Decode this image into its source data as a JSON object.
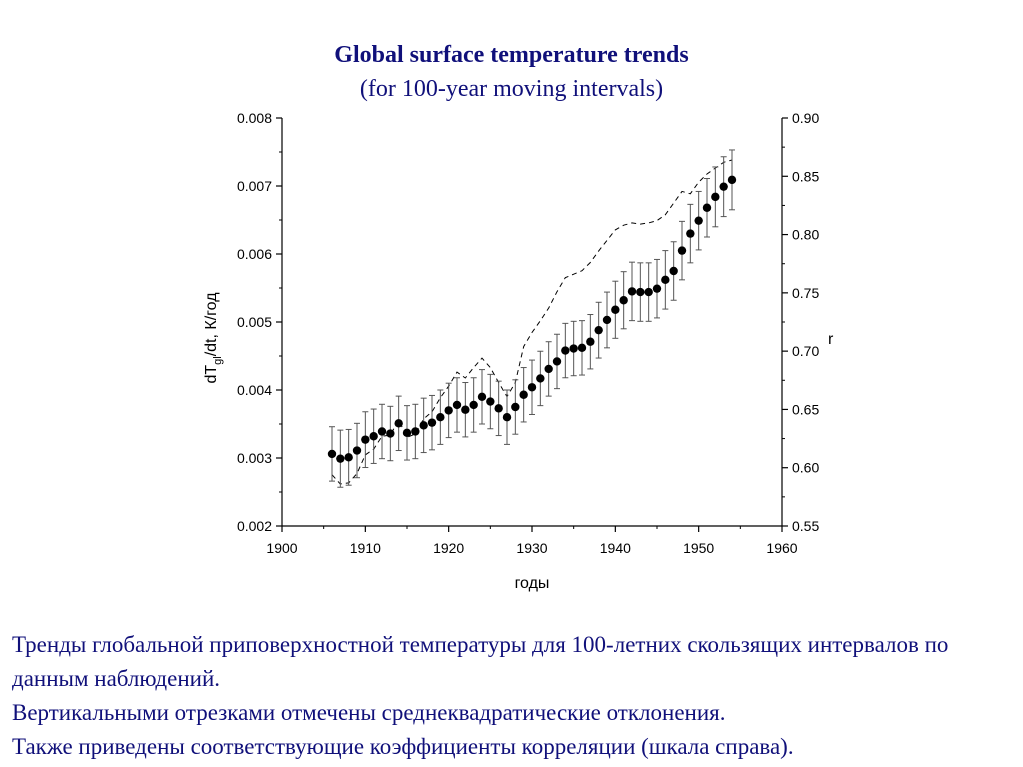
{
  "title": "Global surface temperature trends",
  "subtitle": "(for 100-year moving intervals)",
  "caption": {
    "line1": "Тренды глобальной приповерхностной температуры  для 100-летних скользящих интервалов по данным наблюдений.",
    "line2": "Вертикальными отрезками отмечены среднеквадратические отклонения.",
    "line3": "Также приведены соответствующие коэффициенты корреляции (шкала справа)."
  },
  "chart_data": {
    "type": "scatter",
    "xlabel": "годы",
    "ylabel_left": "dT_gl/dt, К/год",
    "ylabel_right": "r",
    "xlim": [
      1900,
      1960
    ],
    "xticks": [
      1900,
      1910,
      1920,
      1930,
      1940,
      1950,
      1960
    ],
    "ylim_left": [
      0.002,
      0.008
    ],
    "yticks_left": [
      "0.002",
      "0.003",
      "0.004",
      "0.005",
      "0.006",
      "0.007",
      "0.008"
    ],
    "ylim_right": [
      0.55,
      0.9
    ],
    "yticks_right": [
      "0.55",
      "0.60",
      "0.65",
      "0.70",
      "0.75",
      "0.80",
      "0.85",
      "0.90"
    ],
    "grid": false,
    "series": [
      {
        "style": "points-with-error-bars",
        "axis": "left",
        "x": [
          1906,
          1907,
          1908,
          1909,
          1910,
          1911,
          1912,
          1913,
          1914,
          1915,
          1916,
          1917,
          1918,
          1919,
          1920,
          1921,
          1922,
          1923,
          1924,
          1925,
          1926,
          1927,
          1928,
          1929,
          1930,
          1931,
          1932,
          1933,
          1934,
          1935,
          1936,
          1937,
          1938,
          1939,
          1940,
          1941,
          1942,
          1943,
          1944,
          1945,
          1946,
          1947,
          1948,
          1949,
          1950,
          1951,
          1952,
          1953,
          1954
        ],
        "y": [
          0.00306,
          0.00299,
          0.00301,
          0.00311,
          0.00327,
          0.00332,
          0.00339,
          0.00336,
          0.00351,
          0.00337,
          0.00339,
          0.00348,
          0.00352,
          0.0036,
          0.0037,
          0.00378,
          0.00371,
          0.00378,
          0.0039,
          0.00383,
          0.00373,
          0.0036,
          0.00375,
          0.00393,
          0.00404,
          0.00417,
          0.00431,
          0.00442,
          0.00458,
          0.00461,
          0.00462,
          0.00471,
          0.00488,
          0.00503,
          0.00518,
          0.00532,
          0.00545,
          0.00544,
          0.00544,
          0.00549,
          0.00562,
          0.00575,
          0.00605,
          0.0063,
          0.00649,
          0.00668,
          0.00684,
          0.00699,
          0.00709
        ],
        "error": [
          0.0004,
          0.00042,
          0.00041,
          0.0004,
          0.00041,
          0.0004,
          0.0004,
          0.0004,
          0.0004,
          0.0004,
          0.0004,
          0.0004,
          0.0004,
          0.0004,
          0.0004,
          0.0004,
          0.0004,
          0.0004,
          0.0004,
          0.0004,
          0.0004,
          0.0004,
          0.0004,
          0.0004,
          0.0004,
          0.0004,
          0.0004,
          0.0004,
          0.0004,
          0.0004,
          0.0004,
          0.0004,
          0.00041,
          0.00041,
          0.00042,
          0.00042,
          0.00043,
          0.00043,
          0.00043,
          0.00043,
          0.00043,
          0.00043,
          0.00043,
          0.00043,
          0.00043,
          0.00043,
          0.00044,
          0.00044,
          0.00044
        ]
      },
      {
        "style": "dashed-line",
        "axis": "right",
        "x": [
          1906,
          1907,
          1908,
          1909,
          1910,
          1911,
          1912,
          1913,
          1914,
          1915,
          1916,
          1917,
          1918,
          1919,
          1920,
          1921,
          1922,
          1923,
          1924,
          1925,
          1926,
          1927,
          1928,
          1929,
          1930,
          1931,
          1932,
          1933,
          1934,
          1935,
          1936,
          1937,
          1938,
          1939,
          1940,
          1941,
          1942,
          1943,
          1944,
          1945,
          1946,
          1947,
          1948,
          1949,
          1950,
          1951,
          1952,
          1953,
          1954
        ],
        "y": [
          0.594,
          0.586,
          0.587,
          0.595,
          0.611,
          0.616,
          0.627,
          0.628,
          0.641,
          0.626,
          0.629,
          0.642,
          0.648,
          0.66,
          0.67,
          0.682,
          0.677,
          0.686,
          0.694,
          0.686,
          0.673,
          0.661,
          0.673,
          0.704,
          0.716,
          0.726,
          0.737,
          0.751,
          0.763,
          0.766,
          0.769,
          0.776,
          0.786,
          0.795,
          0.804,
          0.808,
          0.81,
          0.809,
          0.81,
          0.812,
          0.817,
          0.827,
          0.837,
          0.835,
          0.845,
          0.852,
          0.857,
          0.862,
          0.864
        ]
      }
    ]
  }
}
